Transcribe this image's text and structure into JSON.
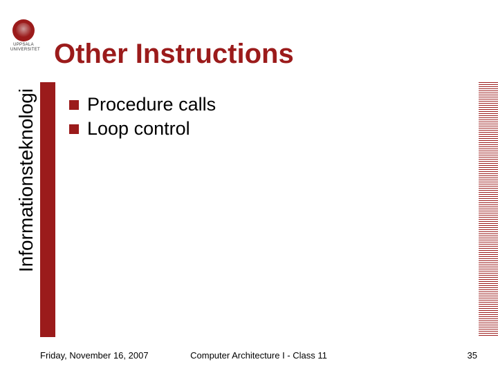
{
  "logo": {
    "line1": "UPPSALA",
    "line2": "UNIVERSITET"
  },
  "title": "Other Instructions",
  "side_label": "Informationsteknologi",
  "bullets": [
    "Procedure calls",
    "Loop control"
  ],
  "footer": {
    "date": "Friday, November 16, 2007",
    "center": "Computer Architecture I - Class 11",
    "page": "35"
  },
  "colors": {
    "brand": "#9b1b1b",
    "background": "#ffffff",
    "text": "#000000"
  }
}
